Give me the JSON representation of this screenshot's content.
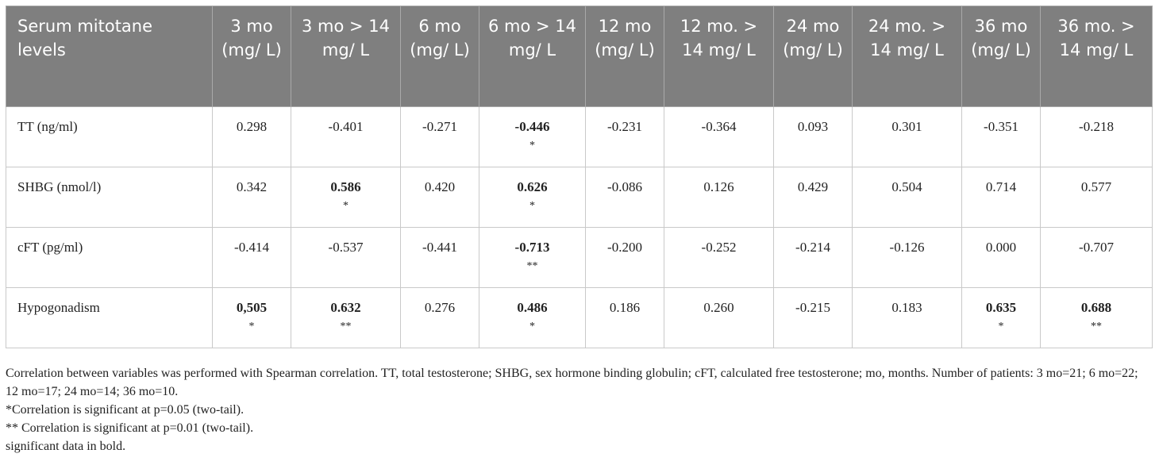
{
  "table": {
    "header": [
      "Serum mitotane levels",
      "3 mo (mg/ L)",
      "3 mo > 14 mg/ L",
      "6 mo (mg/ L)",
      "6 mo > 14 mg/ L",
      "12 mo (mg/ L)",
      "12 mo. > 14 mg/ L",
      "24 mo (mg/ L)",
      "24 mo. > 14 mg/ L",
      "36 mo (mg/ L)",
      "36 mo. > 14 mg/ L"
    ],
    "rows": [
      {
        "label": "TT (ng/ml)",
        "cells": [
          {
            "value": "0.298",
            "bold": false,
            "star": ""
          },
          {
            "value": "-0.401",
            "bold": false,
            "star": ""
          },
          {
            "value": "-0.271",
            "bold": false,
            "star": ""
          },
          {
            "value": "-0.446",
            "bold": true,
            "star": "*"
          },
          {
            "value": "-0.231",
            "bold": false,
            "star": ""
          },
          {
            "value": "-0.364",
            "bold": false,
            "star": ""
          },
          {
            "value": "0.093",
            "bold": false,
            "star": ""
          },
          {
            "value": "0.301",
            "bold": false,
            "star": ""
          },
          {
            "value": "-0.351",
            "bold": false,
            "star": ""
          },
          {
            "value": "-0.218",
            "bold": false,
            "star": ""
          }
        ]
      },
      {
        "label": "SHBG (nmol/l)",
        "cells": [
          {
            "value": "0.342",
            "bold": false,
            "star": ""
          },
          {
            "value": "0.586",
            "bold": true,
            "star": "*"
          },
          {
            "value": "0.420",
            "bold": false,
            "star": ""
          },
          {
            "value": "0.626",
            "bold": true,
            "star": "*"
          },
          {
            "value": "-0.086",
            "bold": false,
            "star": ""
          },
          {
            "value": "0.126",
            "bold": false,
            "star": ""
          },
          {
            "value": "0.429",
            "bold": false,
            "star": ""
          },
          {
            "value": "0.504",
            "bold": false,
            "star": ""
          },
          {
            "value": "0.714",
            "bold": false,
            "star": ""
          },
          {
            "value": "0.577",
            "bold": false,
            "star": ""
          }
        ]
      },
      {
        "label": "cFT (pg/ml)",
        "cells": [
          {
            "value": "-0.414",
            "bold": false,
            "star": ""
          },
          {
            "value": "-0.537",
            "bold": false,
            "star": ""
          },
          {
            "value": "-0.441",
            "bold": false,
            "star": ""
          },
          {
            "value": "-0.713",
            "bold": true,
            "star": "**"
          },
          {
            "value": "-0.200",
            "bold": false,
            "star": ""
          },
          {
            "value": "-0.252",
            "bold": false,
            "star": ""
          },
          {
            "value": "-0.214",
            "bold": false,
            "star": ""
          },
          {
            "value": "-0.126",
            "bold": false,
            "star": ""
          },
          {
            "value": "0.000",
            "bold": false,
            "star": ""
          },
          {
            "value": "-0.707",
            "bold": false,
            "star": ""
          }
        ]
      },
      {
        "label": "Hypogonadism",
        "cells": [
          {
            "value": "0,505",
            "bold": true,
            "star": "*"
          },
          {
            "value": "0.632",
            "bold": true,
            "star": "**"
          },
          {
            "value": "0.276",
            "bold": false,
            "star": ""
          },
          {
            "value": "0.486",
            "bold": true,
            "star": "*"
          },
          {
            "value": "0.186",
            "bold": false,
            "star": ""
          },
          {
            "value": "0.260",
            "bold": false,
            "star": ""
          },
          {
            "value": "-0.215",
            "bold": false,
            "star": ""
          },
          {
            "value": "0.183",
            "bold": false,
            "star": ""
          },
          {
            "value": "0.635",
            "bold": true,
            "star": "*"
          },
          {
            "value": "0.688",
            "bold": true,
            "star": "**"
          }
        ]
      }
    ]
  },
  "notes": [
    "Correlation between variables was performed with Spearman correlation. TT, total testosterone; SHBG, sex hormone binding globulin; cFT, calculated free testosterone; mo, months. Number of patients: 3 mo=21; 6 mo=22; 12 mo=17; 24 mo=14; 36 mo=10.",
    "*Correlation is significant at p=0.05 (two-tail).",
    "** Correlation is significant at p=0.01 (two-tail).",
    "significant data in bold."
  ]
}
